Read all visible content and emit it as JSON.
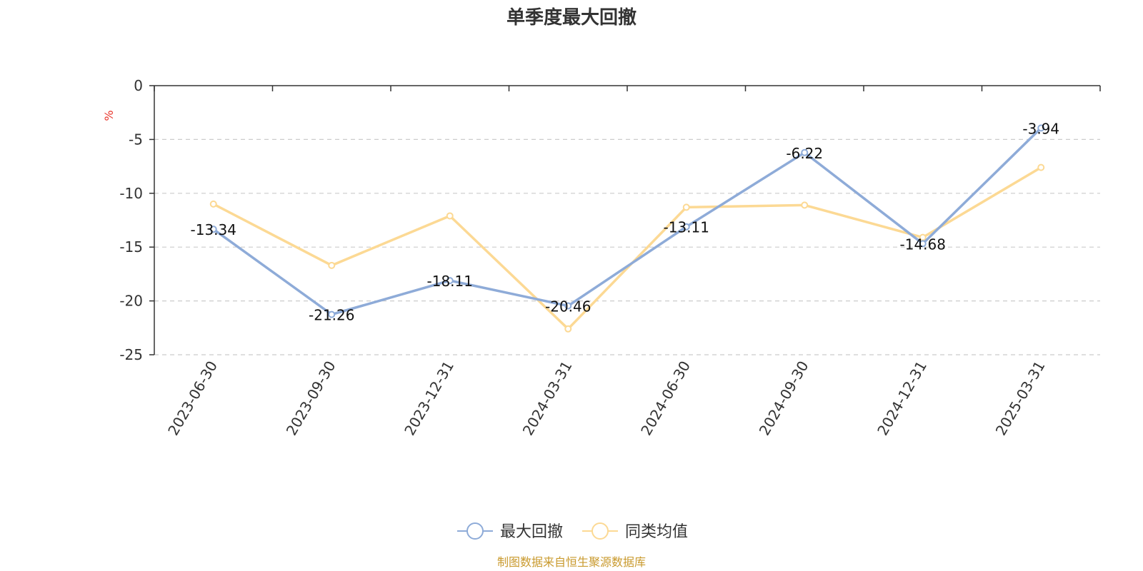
{
  "chart_data": {
    "type": "line",
    "title": "单季度最大回撤",
    "ylabel": "%",
    "ylim": [
      -25,
      0
    ],
    "yticks": [
      0,
      -5,
      -10,
      -15,
      -20,
      -25
    ],
    "grid": true,
    "legend_position": "bottom-center",
    "categories": [
      "2023-06-30",
      "2023-09-30",
      "2023-12-31",
      "2024-03-31",
      "2024-06-30",
      "2024-09-30",
      "2024-12-31",
      "2025-03-31"
    ],
    "series": [
      {
        "name": "最大回撤",
        "color": "#8eabd8",
        "values": [
          -13.34,
          -21.26,
          -18.11,
          -20.46,
          -13.11,
          -6.22,
          -14.68,
          -3.94
        ],
        "show_labels": true
      },
      {
        "name": "同类均值",
        "color": "#fcd994",
        "values": [
          -11.0,
          -16.7,
          -12.1,
          -22.6,
          -11.3,
          -11.1,
          -14.1,
          -7.6
        ],
        "show_labels": false
      }
    ]
  },
  "source_text": "制图数据来自恒生聚源数据库",
  "colors": {
    "axis": "#333333",
    "grid": "#cccccc",
    "unit": "#e8362c",
    "source": "#c99a2e"
  }
}
